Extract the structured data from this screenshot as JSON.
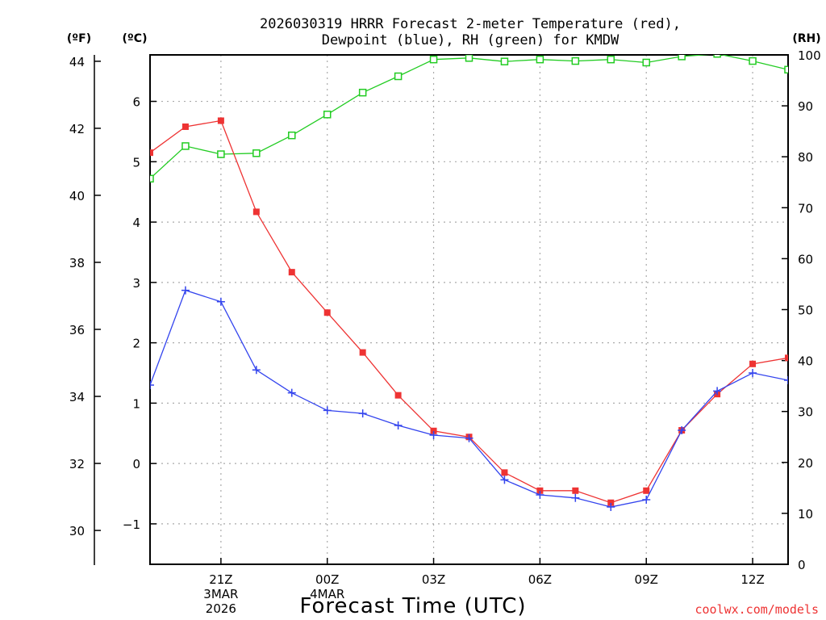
{
  "chart_data": {
    "type": "line",
    "title_lines": [
      "2026030319 HRRR Forecast 2-meter Temperature (red),",
      "Dewpoint (blue), RH (green) for KMDW"
    ],
    "unit_labels": {
      "fahrenheit": "(ºF)",
      "celsius": "(ºC)",
      "rh": "(RH)"
    },
    "xlabel": "Forecast Time (UTC)",
    "credit": "coolwx.com/models",
    "x_hours": [
      0,
      1,
      2,
      3,
      4,
      5,
      6,
      7,
      8,
      9,
      10,
      11,
      12,
      13,
      14,
      15,
      16,
      17,
      18
    ],
    "xlim": [
      0,
      18
    ],
    "x_ticks": [
      {
        "hour": 2,
        "lines": [
          "21Z",
          "3MAR",
          "2026"
        ]
      },
      {
        "hour": 5,
        "lines": [
          "00Z",
          "4MAR"
        ]
      },
      {
        "hour": 8,
        "lines": [
          "03Z"
        ]
      },
      {
        "hour": 11,
        "lines": [
          "06Z"
        ]
      },
      {
        "hour": 14,
        "lines": [
          "09Z"
        ]
      },
      {
        "hour": 17,
        "lines": [
          "12Z"
        ]
      }
    ],
    "celsius_axis": {
      "lim": [
        -1.67,
        6.77
      ],
      "ticks": [
        -1,
        0,
        1,
        2,
        3,
        4,
        5,
        6
      ],
      "tick_labels": [
        "−1",
        "0",
        "1",
        "2",
        "3",
        "4",
        "5",
        "6"
      ]
    },
    "fahrenheit_axis": {
      "lim": [
        28.99,
        44.19
      ],
      "ticks": [
        30,
        32,
        34,
        36,
        38,
        40,
        42,
        44
      ],
      "tick_labels": [
        "30",
        "32",
        "34",
        "36",
        "38",
        "40",
        "42",
        "44"
      ]
    },
    "rh_axis": {
      "lim": [
        0,
        100
      ],
      "ticks": [
        0,
        10,
        20,
        30,
        40,
        50,
        60,
        70,
        80,
        90,
        100
      ],
      "tick_labels": [
        "0",
        "10",
        "20",
        "30",
        "40",
        "50",
        "60",
        "70",
        "80",
        "90",
        "100"
      ]
    },
    "series": [
      {
        "name": "Temperature",
        "axis": "celsius",
        "color": "#ee3333",
        "marker": "square",
        "values": [
          5.15,
          5.58,
          5.68,
          4.17,
          3.17,
          2.5,
          1.84,
          1.13,
          0.54,
          0.44,
          -0.15,
          -0.45,
          -0.45,
          -0.65,
          -0.45,
          0.55,
          1.15,
          1.65,
          1.75
        ]
      },
      {
        "name": "Dewpoint",
        "axis": "celsius",
        "color": "#3344ee",
        "marker": "plus",
        "values": [
          1.3,
          2.87,
          2.68,
          1.55,
          1.17,
          0.88,
          0.83,
          0.63,
          0.47,
          0.42,
          -0.27,
          -0.52,
          -0.57,
          -0.72,
          -0.6,
          0.55,
          1.2,
          1.5,
          1.38
        ]
      },
      {
        "name": "RH",
        "axis": "rh",
        "color": "#22cc22",
        "marker": "open-square",
        "values": [
          75.7,
          82.1,
          80.5,
          80.7,
          84.2,
          88.3,
          92.6,
          95.8,
          99.1,
          99.4,
          98.7,
          99.1,
          98.8,
          99.1,
          98.5,
          99.7,
          100.2,
          98.8,
          97.1
        ]
      }
    ]
  }
}
